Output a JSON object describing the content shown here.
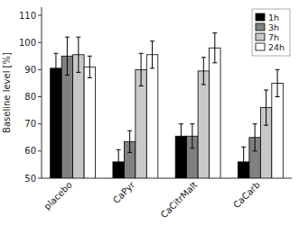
{
  "chart_data": {
    "type": "bar",
    "categories": [
      "placebo",
      "CaPyr",
      "CaCitrMalt",
      "CaCarb"
    ],
    "series": [
      {
        "name": "1h",
        "color": "#000000",
        "values": [
          90.5,
          56.0,
          65.5,
          56.0
        ],
        "errors": [
          5.5,
          4.5,
          4.5,
          5.5
        ]
      },
      {
        "name": "3h",
        "color": "#808080",
        "values": [
          95.0,
          63.5,
          65.5,
          65.0
        ],
        "errors": [
          7.0,
          4.0,
          4.5,
          5.0
        ]
      },
      {
        "name": "7h",
        "color": "#c8c8c8",
        "values": [
          95.5,
          90.0,
          89.5,
          76.0
        ],
        "errors": [
          6.5,
          6.0,
          5.0,
          6.5
        ]
      },
      {
        "name": "24h",
        "color": "#ffffff",
        "values": [
          91.0,
          95.5,
          98.0,
          85.0
        ],
        "errors": [
          4.0,
          5.0,
          5.5,
          5.0
        ]
      }
    ],
    "ylabel": "Baseline level [%]",
    "ylim": [
      50,
      113
    ],
    "yticks": [
      50,
      60,
      70,
      80,
      90,
      100,
      110
    ],
    "grid": false,
    "legend": "upper right"
  }
}
